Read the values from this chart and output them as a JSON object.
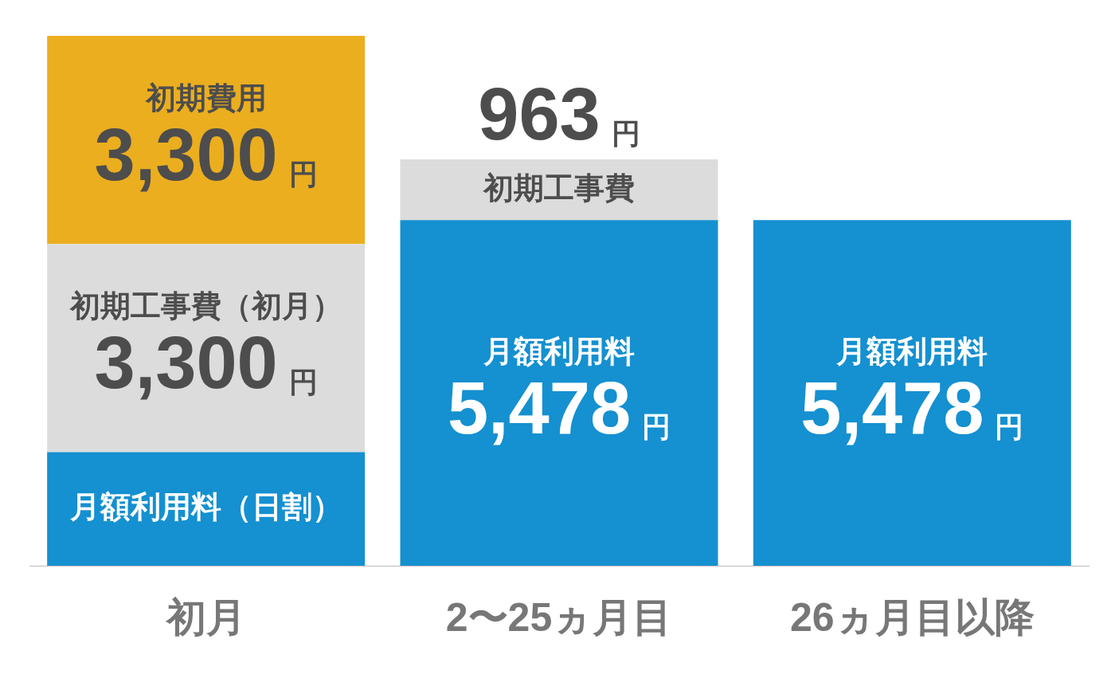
{
  "chart_data": {
    "type": "bar",
    "stacked": true,
    "categories": [
      "初月",
      "2〜25ヵ月目",
      "26ヵ月目以降"
    ],
    "series": [
      {
        "name": "月額利用料（日割）",
        "color": "#1590d0",
        "values": [
          1800,
          null,
          null
        ],
        "value_labels": [
          null,
          null,
          null
        ]
      },
      {
        "name": "月額利用料",
        "color": "#1590d0",
        "values": [
          null,
          5478,
          5478
        ],
        "value_labels": [
          null,
          "5,478円",
          "5,478円"
        ]
      },
      {
        "name": "初期工事費（初月）",
        "color": "#dcdcdc",
        "values": [
          3300,
          null,
          null
        ],
        "value_labels": [
          "3,300円",
          null,
          null
        ]
      },
      {
        "name": "初期工事費",
        "color": "#dcdcdc",
        "values": [
          null,
          963,
          null
        ],
        "value_labels": [
          null,
          "963円",
          null
        ]
      },
      {
        "name": "初期費用",
        "color": "#ebae1f",
        "values": [
          3300,
          null,
          null
        ],
        "value_labels": [
          "3,300円",
          null,
          null
        ]
      }
    ],
    "ylim": [
      0,
      8400
    ],
    "tick_labels": "x",
    "grid": false,
    "legend": false
  }
}
